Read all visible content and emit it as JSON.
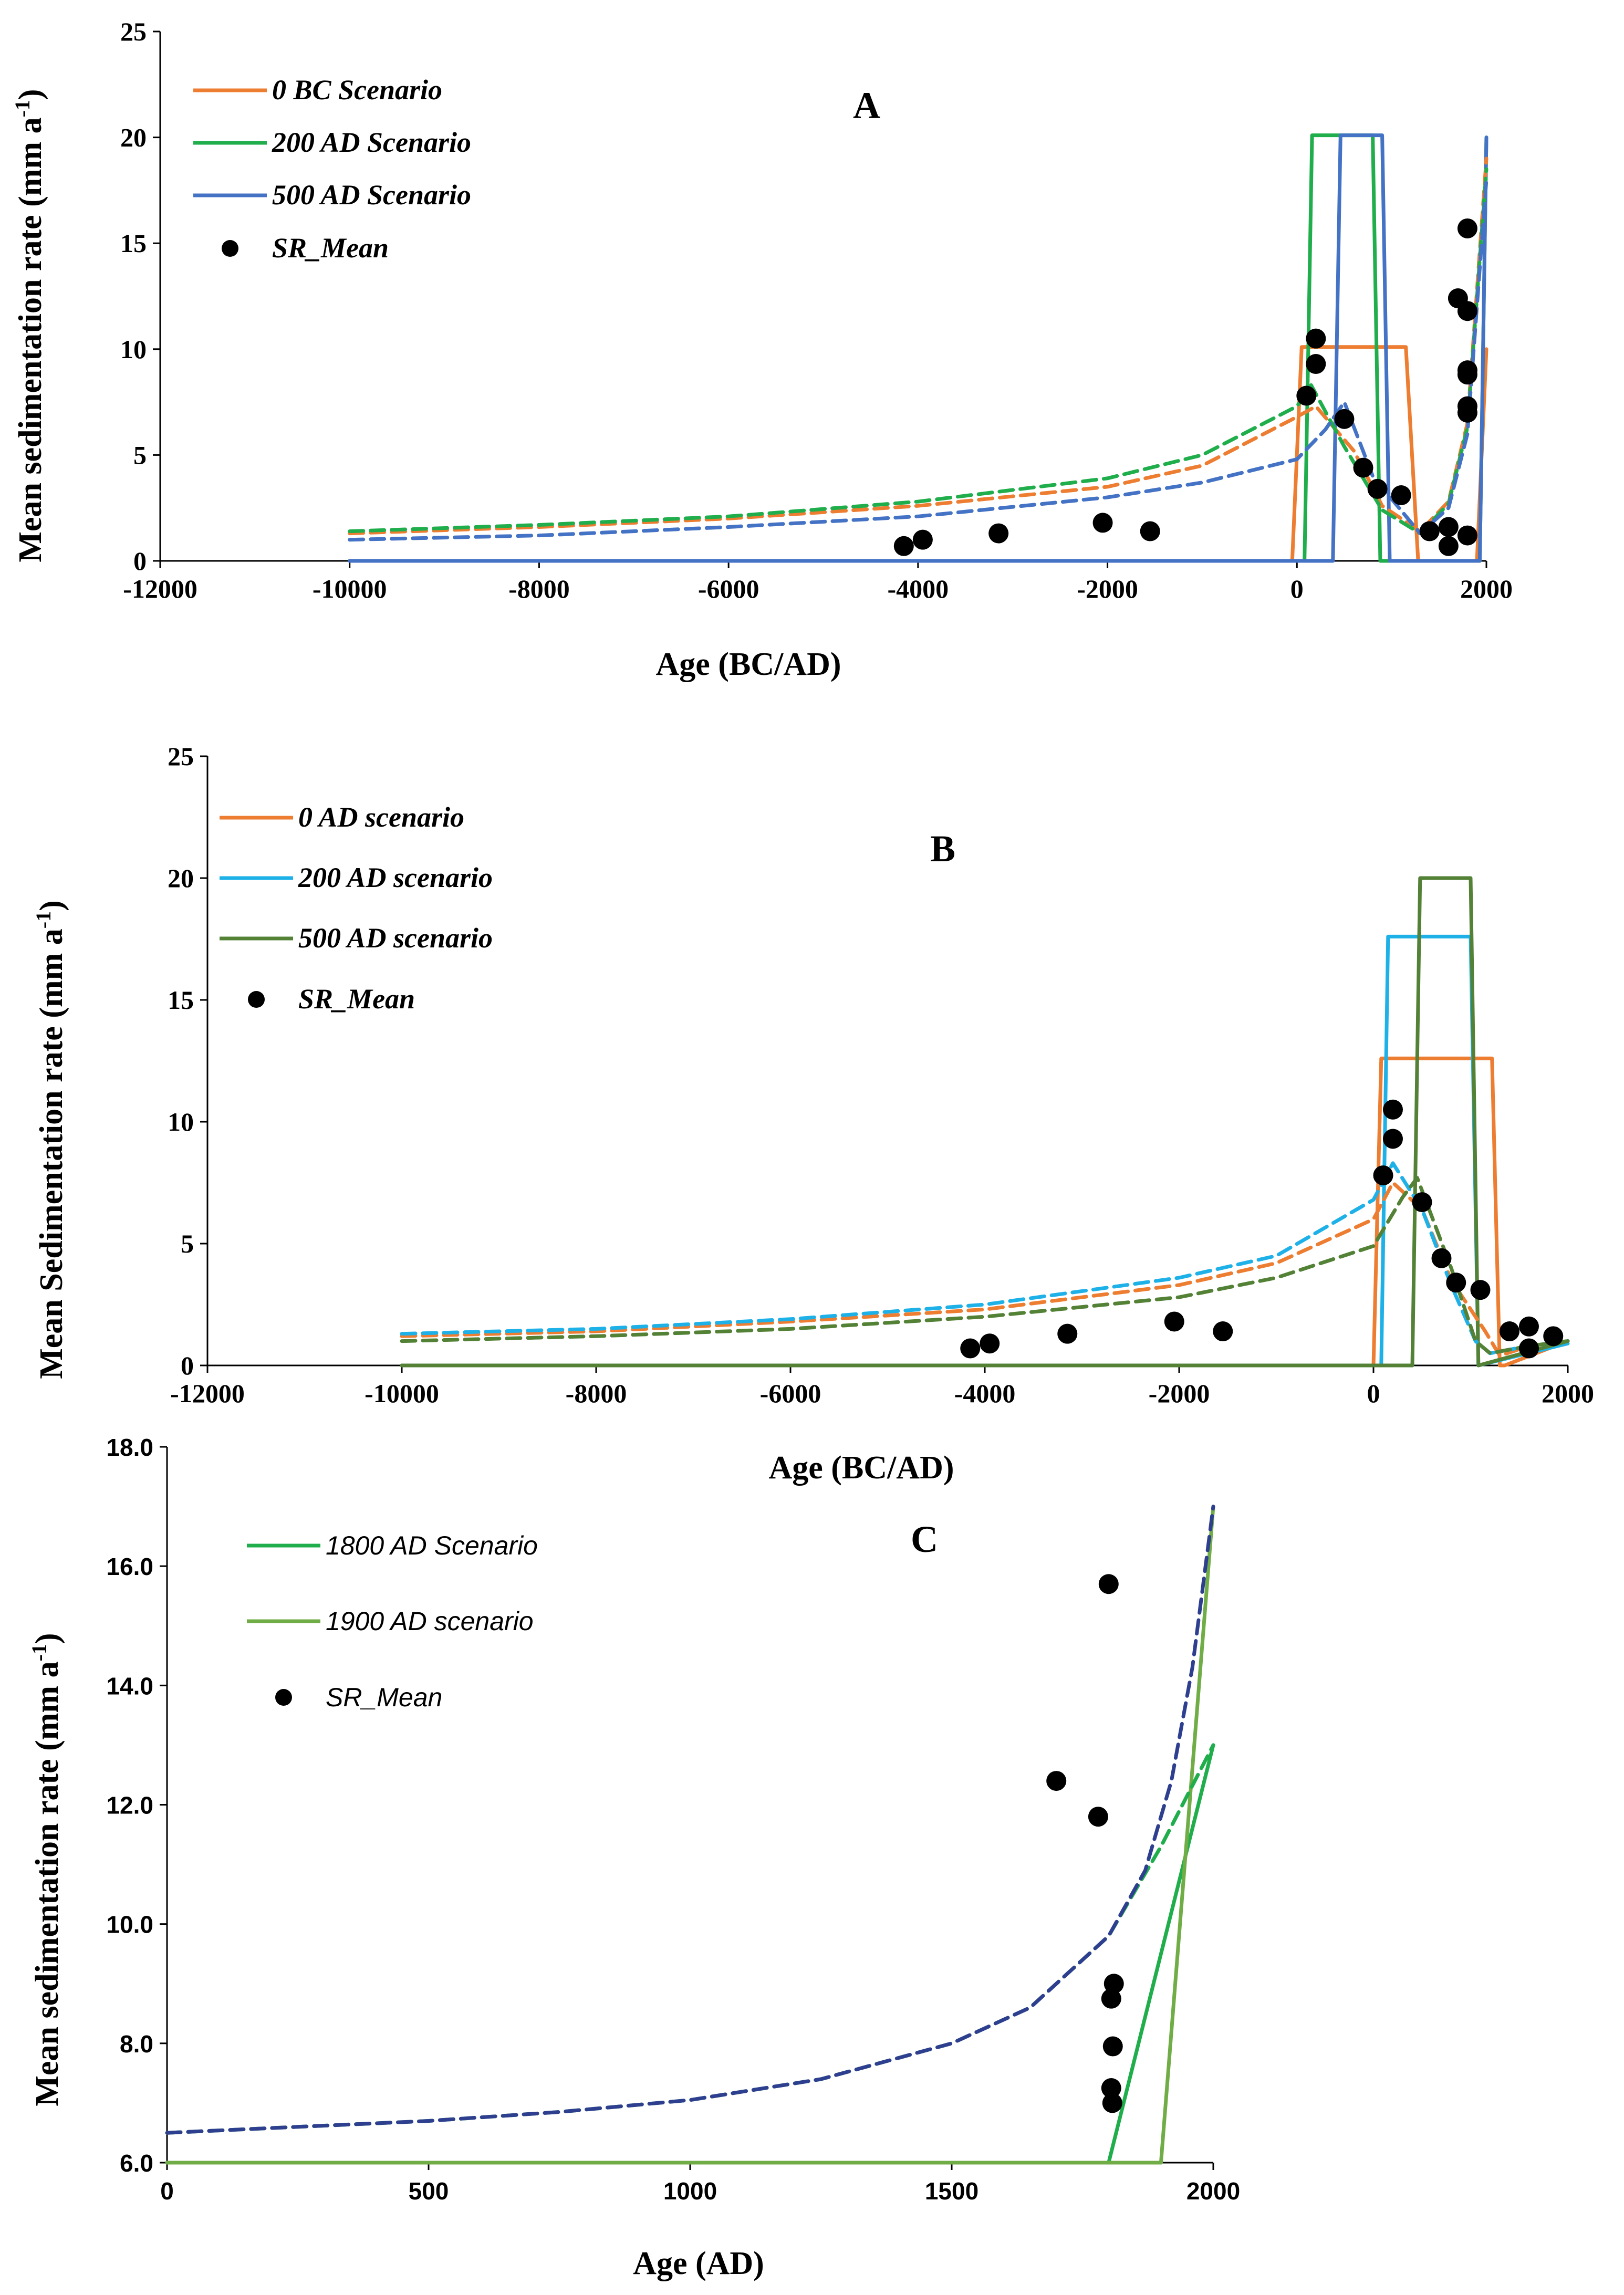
{
  "chart_data": [
    {
      "type": "line",
      "panel_label": "A",
      "xlabel": "Age (BC/AD)",
      "ylabel": "Mean sedimentation rate (mm a",
      "ylabel_sup": "-1",
      "ylabel_close": ")",
      "xlim": [
        -12000,
        2000
      ],
      "ylim": [
        0,
        25
      ],
      "x_ticks": [
        -12000,
        -10000,
        -8000,
        -6000,
        -4000,
        -2000,
        0,
        2000
      ],
      "x_tick_labels": [
        "-12000",
        "-10000",
        "-8000",
        "-6000",
        "-4000",
        "-2000",
        "0",
        "2000"
      ],
      "y_ticks": [
        0,
        5,
        10,
        15,
        20,
        25
      ],
      "y_tick_labels": [
        "0",
        "5",
        "10",
        "15",
        "20",
        "25"
      ],
      "legend_position": "top-left",
      "series": [
        {
          "name": "0 BC Scenario",
          "color": "#ED7D31",
          "style": "solid",
          "x": [
            -10000,
            -50,
            50,
            1150,
            1280,
            1400,
            1900,
            2000
          ],
          "y": [
            0,
            0,
            10.1,
            10.1,
            0,
            0,
            0,
            10
          ]
        },
        {
          "name": "200 AD Scenario",
          "color": "#1FAE4B",
          "style": "solid",
          "x": [
            -10000,
            80,
            160,
            800,
            880,
            1930,
            2000
          ],
          "y": [
            0,
            0,
            20.1,
            20.1,
            0,
            0,
            20
          ]
        },
        {
          "name": "500 AD Scenario",
          "color": "#4472C4",
          "style": "solid",
          "x": [
            -10000,
            380,
            460,
            900,
            980,
            1930,
            2000
          ],
          "y": [
            0,
            0,
            20.1,
            20.1,
            0,
            0,
            20
          ]
        },
        {
          "name": "0 BC Scenario (dashed)",
          "color": "#ED7D31",
          "style": "dashed",
          "x": [
            -10000,
            -8000,
            -6000,
            -4000,
            -2000,
            -1000,
            0,
            200,
            600,
            900,
            1300,
            1600,
            1800,
            2000
          ],
          "y": [
            1.3,
            1.6,
            2.0,
            2.6,
            3.5,
            4.5,
            6.8,
            7.3,
            5.2,
            2.6,
            1.4,
            2.8,
            6.5,
            19.0
          ]
        },
        {
          "name": "200 AD Scenario (dashed)",
          "color": "#1FAE4B",
          "style": "dashed",
          "x": [
            -10000,
            -8000,
            -6000,
            -4000,
            -2000,
            -1000,
            0,
            150,
            500,
            900,
            1300,
            1600,
            1800,
            2000
          ],
          "y": [
            1.4,
            1.7,
            2.1,
            2.8,
            3.9,
            5.0,
            7.3,
            8.3,
            5.4,
            2.4,
            1.3,
            2.7,
            6.3,
            18.5
          ]
        },
        {
          "name": "500 AD Scenario (dashed)",
          "color": "#4472C4",
          "style": "dashed",
          "x": [
            -10000,
            -8000,
            -6000,
            -4000,
            -2000,
            -1000,
            0,
            300,
            500,
            800,
            1300,
            1600,
            1800,
            2000
          ],
          "y": [
            1.0,
            1.2,
            1.6,
            2.1,
            3.0,
            3.7,
            4.8,
            6.2,
            7.5,
            4.0,
            1.3,
            2.5,
            6.0,
            18.0
          ]
        }
      ],
      "points": {
        "name": "SR_Mean",
        "x": [
          -4150,
          -3950,
          -3150,
          -2050,
          -1550,
          100,
          200,
          200,
          500,
          700,
          850,
          1100,
          1400,
          1600,
          1600,
          1700,
          1800,
          1800,
          1800,
          1800,
          1800,
          1800,
          1800
        ],
        "y": [
          0.7,
          1.0,
          1.3,
          1.8,
          1.4,
          7.8,
          9.3,
          10.5,
          6.7,
          4.4,
          3.4,
          3.1,
          1.4,
          1.6,
          0.7,
          12.4,
          11.8,
          15.7,
          9.0,
          8.8,
          7.3,
          7.0,
          1.2
        ]
      }
    },
    {
      "type": "line",
      "panel_label": "B",
      "xlabel": "Age (BC/AD)",
      "ylabel": "Mean Sedimentation rate (mm a",
      "ylabel_sup": "-1",
      "ylabel_close": ")",
      "xlim": [
        -12000,
        2000
      ],
      "ylim": [
        0,
        25
      ],
      "x_ticks": [
        -12000,
        -10000,
        -8000,
        -6000,
        -4000,
        -2000,
        0,
        2000
      ],
      "x_tick_labels": [
        "-12000",
        "-10000",
        "-8000",
        "-6000",
        "-4000",
        "-2000",
        "0",
        "2000"
      ],
      "y_ticks": [
        0,
        5,
        10,
        15,
        20,
        25
      ],
      "y_tick_labels": [
        "0",
        "5",
        "10",
        "15",
        "20",
        "25"
      ],
      "legend_position": "top-left",
      "series": [
        {
          "name": "0 AD scenario",
          "color": "#ED7D31",
          "style": "solid",
          "x": [
            -10000,
            0,
            80,
            1220,
            1300,
            1350,
            2000
          ],
          "y": [
            0,
            0,
            12.6,
            12.6,
            0,
            0,
            1.0
          ]
        },
        {
          "name": "200 AD scenario",
          "color": "#1EB1E8",
          "style": "solid",
          "x": [
            -10000,
            80,
            150,
            1000,
            1080,
            2000
          ],
          "y": [
            0,
            0,
            17.6,
            17.6,
            0,
            0.9
          ]
        },
        {
          "name": "500 AD scenario",
          "color": "#538135",
          "style": "solid",
          "x": [
            -10000,
            400,
            480,
            1000,
            1080,
            2000
          ],
          "y": [
            0,
            0,
            20.0,
            20.0,
            0,
            1.0
          ]
        },
        {
          "name": "0 AD scenario (dashed)",
          "color": "#ED7D31",
          "style": "dashed",
          "x": [
            -10000,
            -8000,
            -6000,
            -4000,
            -2000,
            -1000,
            0,
            200,
            500,
            800,
            1150,
            1300,
            1600,
            2000
          ],
          "y": [
            1.2,
            1.4,
            1.8,
            2.3,
            3.3,
            4.2,
            6.0,
            7.5,
            6.4,
            3.5,
            1.4,
            0.4,
            0.8,
            1.0
          ]
        },
        {
          "name": "200 AD scenario (dashed)",
          "color": "#1EB1E8",
          "style": "dashed",
          "x": [
            -10000,
            -8000,
            -6000,
            -4000,
            -2000,
            -1000,
            0,
            200,
            500,
            800,
            1050,
            1200,
            1600,
            2000
          ],
          "y": [
            1.3,
            1.5,
            1.9,
            2.5,
            3.6,
            4.5,
            6.8,
            8.3,
            6.4,
            3.3,
            1.0,
            0.5,
            0.8,
            1.0
          ]
        },
        {
          "name": "500 AD scenario (dashed)",
          "color": "#538135",
          "style": "dashed",
          "x": [
            -10000,
            -8000,
            -6000,
            -4000,
            -2000,
            -1000,
            0,
            300,
            450,
            800,
            1050,
            1200,
            1600,
            2000
          ],
          "y": [
            1.0,
            1.2,
            1.5,
            2.0,
            2.8,
            3.6,
            4.9,
            6.9,
            7.7,
            4.0,
            1.0,
            0.5,
            0.8,
            1.0
          ]
        }
      ],
      "points": {
        "name": "SR_Mean",
        "x": [
          -4150,
          -3950,
          -3150,
          -2050,
          -1550,
          100,
          200,
          200,
          500,
          700,
          850,
          1100,
          1400,
          1600,
          1600,
          1850
        ],
        "y": [
          0.7,
          0.9,
          1.3,
          1.8,
          1.4,
          7.8,
          9.3,
          10.5,
          6.7,
          4.4,
          3.4,
          3.1,
          1.4,
          1.6,
          0.7,
          1.2
        ]
      }
    },
    {
      "type": "line",
      "panel_label": "C",
      "xlabel": "Age (AD)",
      "ylabel": "Mean sedimentation rate (mm a",
      "ylabel_sup": "-1",
      "ylabel_close": ")",
      "xlim": [
        0,
        2000
      ],
      "ylim": [
        6.0,
        18.0
      ],
      "x_ticks": [
        0,
        500,
        1000,
        1500,
        2000
      ],
      "x_tick_labels": [
        "0",
        "500",
        "1000",
        "1500",
        "2000"
      ],
      "y_ticks": [
        6,
        8,
        10,
        12,
        14,
        16,
        18
      ],
      "y_tick_labels": [
        "6.0",
        "8.0",
        "10.0",
        "12.0",
        "14.0",
        "16.0",
        "18.0"
      ],
      "legend_position": "top-left",
      "series": [
        {
          "name": "1800 AD Scenario",
          "color": "#1FAE4B",
          "style": "solid",
          "x": [
            0,
            1800,
            2000
          ],
          "y": [
            6.0,
            6.0,
            13.0
          ]
        },
        {
          "name": "1900 AD scenario",
          "color": "#70AD47",
          "style": "solid",
          "x": [
            0,
            1900,
            2000
          ],
          "y": [
            6.0,
            6.0,
            17.0
          ]
        },
        {
          "name": "1800 AD Scenario (dashed)",
          "color": "#1FAE4B",
          "style": "dashed",
          "x": [
            0,
            250,
            500,
            750,
            1000,
            1250,
            1500,
            1650,
            1800,
            1900,
            2000
          ],
          "y": [
            6.5,
            6.6,
            6.7,
            6.85,
            7.05,
            7.4,
            8.0,
            8.6,
            9.8,
            11.3,
            13.0
          ]
        },
        {
          "name": "1900 AD scenario (dashed)",
          "color": "#2E3F8F",
          "style": "dashed",
          "x": [
            0,
            250,
            500,
            750,
            1000,
            1250,
            1500,
            1650,
            1800,
            1870,
            1920,
            1960,
            2000
          ],
          "y": [
            6.5,
            6.6,
            6.7,
            6.85,
            7.05,
            7.4,
            8.0,
            8.6,
            9.8,
            10.9,
            12.4,
            14.3,
            17.0
          ]
        }
      ],
      "points": {
        "name": "SR_Mean",
        "x": [
          1700,
          1780,
          1800,
          1810,
          1805,
          1808,
          1805,
          1807
        ],
        "y": [
          12.4,
          11.8,
          15.7,
          9.0,
          8.75,
          7.95,
          7.25,
          7.0
        ]
      }
    }
  ]
}
